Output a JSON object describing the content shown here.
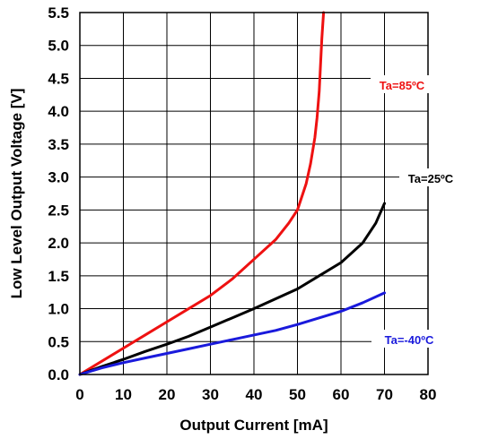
{
  "chart_data": {
    "type": "line",
    "title": "",
    "xlabel": "Output Current [mA]",
    "ylabel": "Low Level Output Voltage [V]",
    "xlim": [
      0,
      80
    ],
    "ylim": [
      0,
      5.5
    ],
    "x_ticks": [
      0,
      10,
      20,
      30,
      40,
      50,
      60,
      70,
      80
    ],
    "y_ticks": [
      0.0,
      0.5,
      1.0,
      1.5,
      2.0,
      2.5,
      3.0,
      3.5,
      4.0,
      4.5,
      5.0,
      5.5
    ],
    "x_tick_labels": [
      "0",
      "10",
      "20",
      "30",
      "40",
      "50",
      "60",
      "70",
      "80"
    ],
    "y_tick_labels": [
      "0.0",
      "0.5",
      "1.0",
      "1.5",
      "2.0",
      "2.5",
      "3.0",
      "3.5",
      "4.0",
      "4.5",
      "5.0",
      "5.5"
    ],
    "grid": true,
    "series": [
      {
        "name": "Ta=85ºC",
        "color": "#ee1111",
        "x": [
          0,
          5,
          10,
          15,
          20,
          25,
          30,
          35,
          40,
          45,
          48,
          50,
          52,
          53,
          54,
          54.5,
          55,
          55.3,
          55.6,
          56
        ],
        "y": [
          0,
          0.2,
          0.4,
          0.6,
          0.8,
          1.0,
          1.2,
          1.45,
          1.75,
          2.05,
          2.3,
          2.5,
          2.9,
          3.2,
          3.6,
          3.9,
          4.3,
          4.7,
          5.1,
          5.5
        ]
      },
      {
        "name": "Ta=25ºC",
        "color": "#000000",
        "x": [
          0,
          5,
          10,
          15,
          20,
          25,
          30,
          35,
          40,
          45,
          50,
          55,
          60,
          65,
          68,
          70
        ],
        "y": [
          0,
          0.12,
          0.23,
          0.35,
          0.46,
          0.58,
          0.72,
          0.86,
          1.0,
          1.15,
          1.3,
          1.5,
          1.7,
          2.0,
          2.3,
          2.6
        ]
      },
      {
        "name": "Ta=-40ºC",
        "color": "#1a1adc",
        "x": [
          0,
          5,
          10,
          15,
          20,
          25,
          30,
          35,
          40,
          45,
          50,
          55,
          60,
          65,
          70
        ],
        "y": [
          0,
          0.1,
          0.18,
          0.25,
          0.32,
          0.39,
          0.46,
          0.53,
          0.6,
          0.67,
          0.76,
          0.86,
          0.96,
          1.09,
          1.24
        ]
      }
    ]
  }
}
